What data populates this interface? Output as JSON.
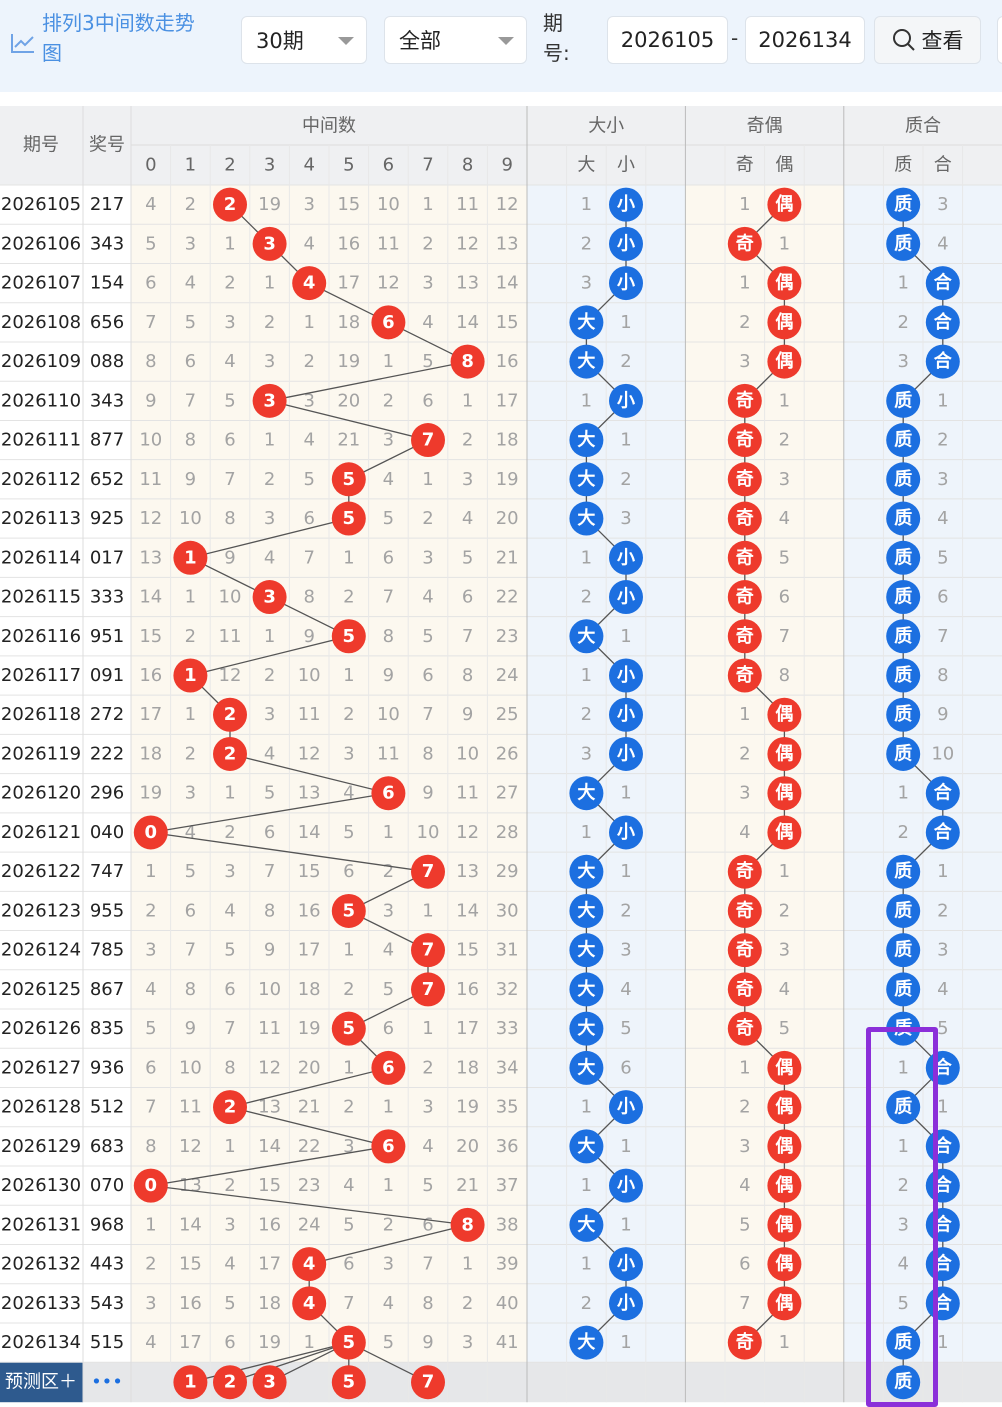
{
  "header": {
    "title": "排列3中间数走势图",
    "period_select": "30期",
    "type_select": "全部",
    "range_label": "期号:",
    "range_start": "2026105",
    "range_sep": "-",
    "range_end": "2026134",
    "search_button": "查看"
  },
  "table": {
    "columns": {
      "period": "期号",
      "number": "奖号",
      "digits_group": "中间数",
      "digits": [
        0,
        1,
        2,
        3,
        4,
        5,
        6,
        7,
        8,
        9
      ],
      "size_group": "大小",
      "size": [
        "大",
        "小"
      ],
      "parity_group": "奇偶",
      "parity": [
        "奇",
        "偶"
      ],
      "prime_group": "质合",
      "prime": [
        "质",
        "合"
      ]
    },
    "rows": [
      {
        "period": "2026105",
        "number": "217",
        "hit": 2,
        "digits": [
          4,
          2,
          2,
          19,
          3,
          15,
          10,
          1,
          11,
          12
        ],
        "size": [
          1,
          "小"
        ],
        "parity": [
          1,
          "偶"
        ],
        "prime": [
          "质",
          3
        ]
      },
      {
        "period": "2026106",
        "number": "343",
        "hit": 3,
        "digits": [
          5,
          3,
          1,
          3,
          4,
          16,
          11,
          2,
          12,
          13
        ],
        "size": [
          2,
          "小"
        ],
        "parity": [
          "奇",
          1
        ],
        "prime": [
          "质",
          4
        ]
      },
      {
        "period": "2026107",
        "number": "154",
        "hit": 4,
        "digits": [
          6,
          4,
          2,
          1,
          4,
          17,
          12,
          3,
          13,
          14
        ],
        "size": [
          3,
          "小"
        ],
        "parity": [
          1,
          "偶"
        ],
        "prime": [
          1,
          "合"
        ]
      },
      {
        "period": "2026108",
        "number": "656",
        "hit": 6,
        "digits": [
          7,
          5,
          3,
          2,
          1,
          18,
          6,
          4,
          14,
          15
        ],
        "size": [
          "大",
          1
        ],
        "parity": [
          2,
          "偶"
        ],
        "prime": [
          2,
          "合"
        ]
      },
      {
        "period": "2026109",
        "number": "088",
        "hit": 8,
        "digits": [
          8,
          6,
          4,
          3,
          2,
          19,
          1,
          5,
          8,
          16
        ],
        "size": [
          "大",
          2
        ],
        "parity": [
          3,
          "偶"
        ],
        "prime": [
          3,
          "合"
        ]
      },
      {
        "period": "2026110",
        "number": "343",
        "hit": 3,
        "digits": [
          9,
          7,
          5,
          3,
          3,
          20,
          2,
          6,
          1,
          17
        ],
        "size": [
          1,
          "小"
        ],
        "parity": [
          "奇",
          1
        ],
        "prime": [
          "质",
          1
        ]
      },
      {
        "period": "2026111",
        "number": "877",
        "hit": 7,
        "digits": [
          10,
          8,
          6,
          1,
          4,
          21,
          3,
          7,
          2,
          18
        ],
        "size": [
          "大",
          1
        ],
        "parity": [
          "奇",
          2
        ],
        "prime": [
          "质",
          2
        ]
      },
      {
        "period": "2026112",
        "number": "652",
        "hit": 5,
        "digits": [
          11,
          9,
          7,
          2,
          5,
          5,
          4,
          1,
          3,
          19
        ],
        "size": [
          "大",
          2
        ],
        "parity": [
          "奇",
          3
        ],
        "prime": [
          "质",
          3
        ]
      },
      {
        "period": "2026113",
        "number": "925",
        "hit": 5,
        "digits": [
          12,
          10,
          8,
          3,
          6,
          5,
          5,
          2,
          4,
          20
        ],
        "size": [
          "大",
          3
        ],
        "parity": [
          "奇",
          4
        ],
        "prime": [
          "质",
          4
        ]
      },
      {
        "period": "2026114",
        "number": "017",
        "hit": 1,
        "digits": [
          13,
          1,
          9,
          4,
          7,
          1,
          6,
          3,
          5,
          21
        ],
        "size": [
          1,
          "小"
        ],
        "parity": [
          "奇",
          5
        ],
        "prime": [
          "质",
          5
        ]
      },
      {
        "period": "2026115",
        "number": "333",
        "hit": 3,
        "digits": [
          14,
          1,
          10,
          3,
          8,
          2,
          7,
          4,
          6,
          22
        ],
        "size": [
          2,
          "小"
        ],
        "parity": [
          "奇",
          6
        ],
        "prime": [
          "质",
          6
        ]
      },
      {
        "period": "2026116",
        "number": "951",
        "hit": 5,
        "digits": [
          15,
          2,
          11,
          1,
          9,
          5,
          8,
          5,
          7,
          23
        ],
        "size": [
          "大",
          1
        ],
        "parity": [
          "奇",
          7
        ],
        "prime": [
          "质",
          7
        ]
      },
      {
        "period": "2026117",
        "number": "091",
        "hit": 1,
        "digits": [
          16,
          1,
          12,
          2,
          10,
          1,
          9,
          6,
          8,
          24
        ],
        "size": [
          1,
          "小"
        ],
        "parity": [
          "奇",
          8
        ],
        "prime": [
          "质",
          8
        ]
      },
      {
        "period": "2026118",
        "number": "272",
        "hit": 2,
        "digits": [
          17,
          1,
          2,
          3,
          11,
          2,
          10,
          7,
          9,
          25
        ],
        "size": [
          2,
          "小"
        ],
        "parity": [
          1,
          "偶"
        ],
        "prime": [
          "质",
          9
        ]
      },
      {
        "period": "2026119",
        "number": "222",
        "hit": 2,
        "digits": [
          18,
          2,
          2,
          4,
          12,
          3,
          11,
          8,
          10,
          26
        ],
        "size": [
          3,
          "小"
        ],
        "parity": [
          2,
          "偶"
        ],
        "prime": [
          "质",
          10
        ]
      },
      {
        "period": "2026120",
        "number": "296",
        "hit": 6,
        "digits": [
          19,
          3,
          1,
          5,
          13,
          4,
          6,
          9,
          11,
          27
        ],
        "size": [
          "大",
          1
        ],
        "parity": [
          3,
          "偶"
        ],
        "prime": [
          1,
          "合"
        ]
      },
      {
        "period": "2026121",
        "number": "040",
        "hit": 0,
        "digits": [
          0,
          4,
          2,
          6,
          14,
          5,
          1,
          10,
          12,
          28
        ],
        "size": [
          1,
          "小"
        ],
        "parity": [
          4,
          "偶"
        ],
        "prime": [
          2,
          "合"
        ]
      },
      {
        "period": "2026122",
        "number": "747",
        "hit": 7,
        "digits": [
          1,
          5,
          3,
          7,
          15,
          6,
          2,
          7,
          13,
          29
        ],
        "size": [
          "大",
          1
        ],
        "parity": [
          "奇",
          1
        ],
        "prime": [
          "质",
          1
        ]
      },
      {
        "period": "2026123",
        "number": "955",
        "hit": 5,
        "digits": [
          2,
          6,
          4,
          8,
          16,
          5,
          3,
          1,
          14,
          30
        ],
        "size": [
          "大",
          2
        ],
        "parity": [
          "奇",
          2
        ],
        "prime": [
          "质",
          2
        ]
      },
      {
        "period": "2026124",
        "number": "785",
        "hit": 7,
        "digits": [
          3,
          7,
          5,
          9,
          17,
          1,
          4,
          7,
          15,
          31
        ],
        "size": [
          "大",
          3
        ],
        "parity": [
          "奇",
          3
        ],
        "prime": [
          "质",
          3
        ]
      },
      {
        "period": "2026125",
        "number": "867",
        "hit": 7,
        "digits": [
          4,
          8,
          6,
          10,
          18,
          2,
          5,
          7,
          16,
          32
        ],
        "size": [
          "大",
          4
        ],
        "parity": [
          "奇",
          4
        ],
        "prime": [
          "质",
          4
        ]
      },
      {
        "period": "2026126",
        "number": "835",
        "hit": 5,
        "digits": [
          5,
          9,
          7,
          11,
          19,
          5,
          6,
          1,
          17,
          33
        ],
        "size": [
          "大",
          5
        ],
        "parity": [
          "奇",
          5
        ],
        "prime": [
          "质",
          5
        ]
      },
      {
        "period": "2026127",
        "number": "936",
        "hit": 6,
        "digits": [
          6,
          10,
          8,
          12,
          20,
          1,
          6,
          2,
          18,
          34
        ],
        "size": [
          "大",
          6
        ],
        "parity": [
          1,
          "偶"
        ],
        "prime": [
          1,
          "合"
        ]
      },
      {
        "period": "2026128",
        "number": "512",
        "hit": 2,
        "digits": [
          7,
          11,
          2,
          13,
          21,
          2,
          1,
          3,
          19,
          35
        ],
        "size": [
          1,
          "小"
        ],
        "parity": [
          2,
          "偶"
        ],
        "prime": [
          "质",
          1
        ]
      },
      {
        "period": "2026129",
        "number": "683",
        "hit": 6,
        "digits": [
          8,
          12,
          1,
          14,
          22,
          3,
          6,
          4,
          20,
          36
        ],
        "size": [
          "大",
          1
        ],
        "parity": [
          3,
          "偶"
        ],
        "prime": [
          1,
          "合"
        ]
      },
      {
        "period": "2026130",
        "number": "070",
        "hit": 0,
        "digits": [
          0,
          13,
          2,
          15,
          23,
          4,
          1,
          5,
          21,
          37
        ],
        "size": [
          1,
          "小"
        ],
        "parity": [
          4,
          "偶"
        ],
        "prime": [
          2,
          "合"
        ]
      },
      {
        "period": "2026131",
        "number": "968",
        "hit": 8,
        "digits": [
          1,
          14,
          3,
          16,
          24,
          5,
          2,
          6,
          8,
          38
        ],
        "size": [
          "大",
          1
        ],
        "parity": [
          5,
          "偶"
        ],
        "prime": [
          3,
          "合"
        ]
      },
      {
        "period": "2026132",
        "number": "443",
        "hit": 4,
        "digits": [
          2,
          15,
          4,
          17,
          4,
          6,
          3,
          7,
          1,
          39
        ],
        "size": [
          1,
          "小"
        ],
        "parity": [
          6,
          "偶"
        ],
        "prime": [
          4,
          "合"
        ]
      },
      {
        "period": "2026133",
        "number": "543",
        "hit": 4,
        "digits": [
          3,
          16,
          5,
          18,
          4,
          7,
          4,
          8,
          2,
          40
        ],
        "size": [
          2,
          "小"
        ],
        "parity": [
          7,
          "偶"
        ],
        "prime": [
          5,
          "合"
        ]
      },
      {
        "period": "2026134",
        "number": "515",
        "hit": 5,
        "digits": [
          4,
          17,
          6,
          19,
          1,
          5,
          5,
          9,
          3,
          41
        ],
        "size": [
          "大",
          1
        ],
        "parity": [
          "奇",
          1
        ],
        "prime": [
          "质",
          1
        ]
      }
    ],
    "forecast": {
      "label": "预测区＋",
      "more": "•••",
      "digits": [
        1,
        2,
        3,
        5,
        7
      ],
      "prime": "质"
    }
  }
}
